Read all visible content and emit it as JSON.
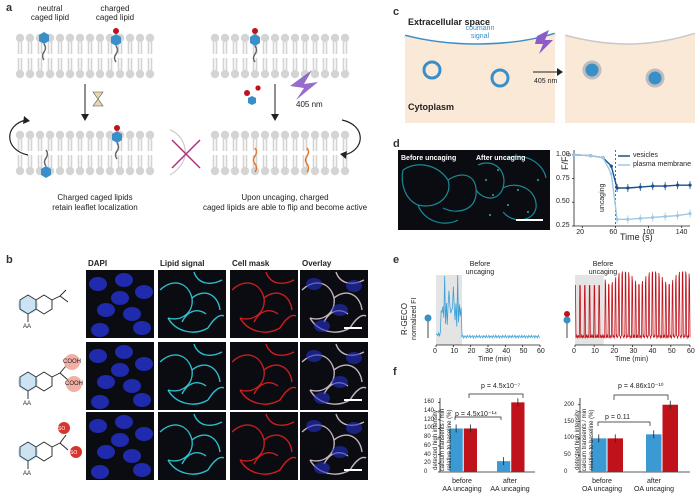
{
  "panels": {
    "a": "a",
    "b": "b",
    "c": "c",
    "d": "d",
    "e": "e",
    "f": "f"
  },
  "a": {
    "neutral_label": "neutral\ncaged lipid",
    "charged_label": "charged\ncaged lipid",
    "wavelength": "405 nm",
    "caption_left": "Charged caged lipids\nretain leaflet localization",
    "caption_right": "Upon uncaging, charged\ncaged lipids are able to flip and become active"
  },
  "c": {
    "extracellular": "Extracellular space",
    "coumarin": "coumarin\nsignal",
    "cytoplasm": "Cytoplasm",
    "wavelength": "405 nm"
  },
  "d": {
    "before": "Before uncaging",
    "after": "After uncaging",
    "ylabel": "F/F",
    "ylabel_sub": "0",
    "xlabel": "Time (s)",
    "uncaging": "uncaging",
    "xticks": [
      "20",
      "60",
      "100",
      "140"
    ],
    "yticks": [
      "0.25",
      "0.50",
      "0.75",
      "1.00"
    ],
    "legend": [
      "vesicles",
      "plasma membrane"
    ],
    "colors": {
      "vesicles": "#1f4e8c",
      "plasma": "#9ec9e6"
    }
  },
  "b": {
    "headers": [
      "DAPI",
      "Lipid signal",
      "Cell mask",
      "Overlay"
    ],
    "aa_labels": [
      "AA",
      "AA",
      "AA"
    ],
    "cooh": [
      "COOH",
      "COOH"
    ],
    "so3": [
      "SO",
      "SO"
    ]
  },
  "e": {
    "before": "Before\nuncaging",
    "before2": "Before\nuncaging",
    "ylabel1": "R-GECO",
    "ylabel2": "normalized FI",
    "xlabel": "Time (min)",
    "xticks": [
      "0",
      "10",
      "20",
      "30",
      "40",
      "50",
      "60"
    ],
    "colors": {
      "left": "#3aa0d8",
      "right": "#c0121a"
    }
  },
  "f": {
    "ylabel_left": "detected high intensity\ncalcium transients / min\nrelative to baseline (%)",
    "ylabel_right": "detected high intensity\ncalcium transients / min\nrelative to baseline (%)",
    "left_yticks": [
      "0",
      "20",
      "40",
      "60",
      "80",
      "100",
      "120",
      "140",
      "160"
    ],
    "right_yticks": [
      "0",
      "50",
      "100",
      "150",
      "200"
    ],
    "left_groups": [
      "before\nAA uncaging",
      "after\nAA uncaging"
    ],
    "right_groups": [
      "before\nOA uncaging",
      "after\nOA uncaging"
    ],
    "left_p": [
      "p = 4.5x10⁻¹⁴",
      "p = 4.5x10⁻⁷"
    ],
    "right_p": [
      "p = 0.11",
      "p = 4.86x10⁻¹⁰"
    ],
    "colors": {
      "neutral": "#3b9ad4",
      "charged": "#c0121a"
    }
  },
  "chart_data": [
    {
      "type": "line",
      "xlabel": "Time (s)",
      "ylabel": "F/F0",
      "xlim": [
        10,
        150
      ],
      "ylim": [
        0.25,
        1.05
      ],
      "series": [
        {
          "name": "vesicles",
          "x": [
            10,
            30,
            45,
            55,
            62,
            75,
            90,
            105,
            120,
            135,
            150
          ],
          "values": [
            1.0,
            0.99,
            0.97,
            0.88,
            0.65,
            0.65,
            0.66,
            0.67,
            0.67,
            0.68,
            0.68
          ]
        },
        {
          "name": "plasma membrane",
          "x": [
            10,
            30,
            45,
            55,
            62,
            75,
            90,
            105,
            120,
            135,
            150
          ],
          "values": [
            1.0,
            0.99,
            0.97,
            0.8,
            0.32,
            0.32,
            0.33,
            0.34,
            0.35,
            0.36,
            0.38
          ]
        }
      ]
    },
    {
      "type": "bar",
      "categories": [
        "before AA uncaging",
        "after AA uncaging"
      ],
      "ylim": [
        0,
        170
      ],
      "series": [
        {
          "name": "neutral",
          "values": [
            100,
            25
          ]
        },
        {
          "name": "charged",
          "values": [
            100,
            160
          ]
        }
      ]
    },
    {
      "type": "bar",
      "categories": [
        "before OA uncaging",
        "after OA uncaging"
      ],
      "ylim": [
        0,
        220
      ],
      "series": [
        {
          "name": "neutral",
          "values": [
            100,
            112
          ]
        },
        {
          "name": "charged",
          "values": [
            100,
            200
          ]
        }
      ]
    }
  ]
}
